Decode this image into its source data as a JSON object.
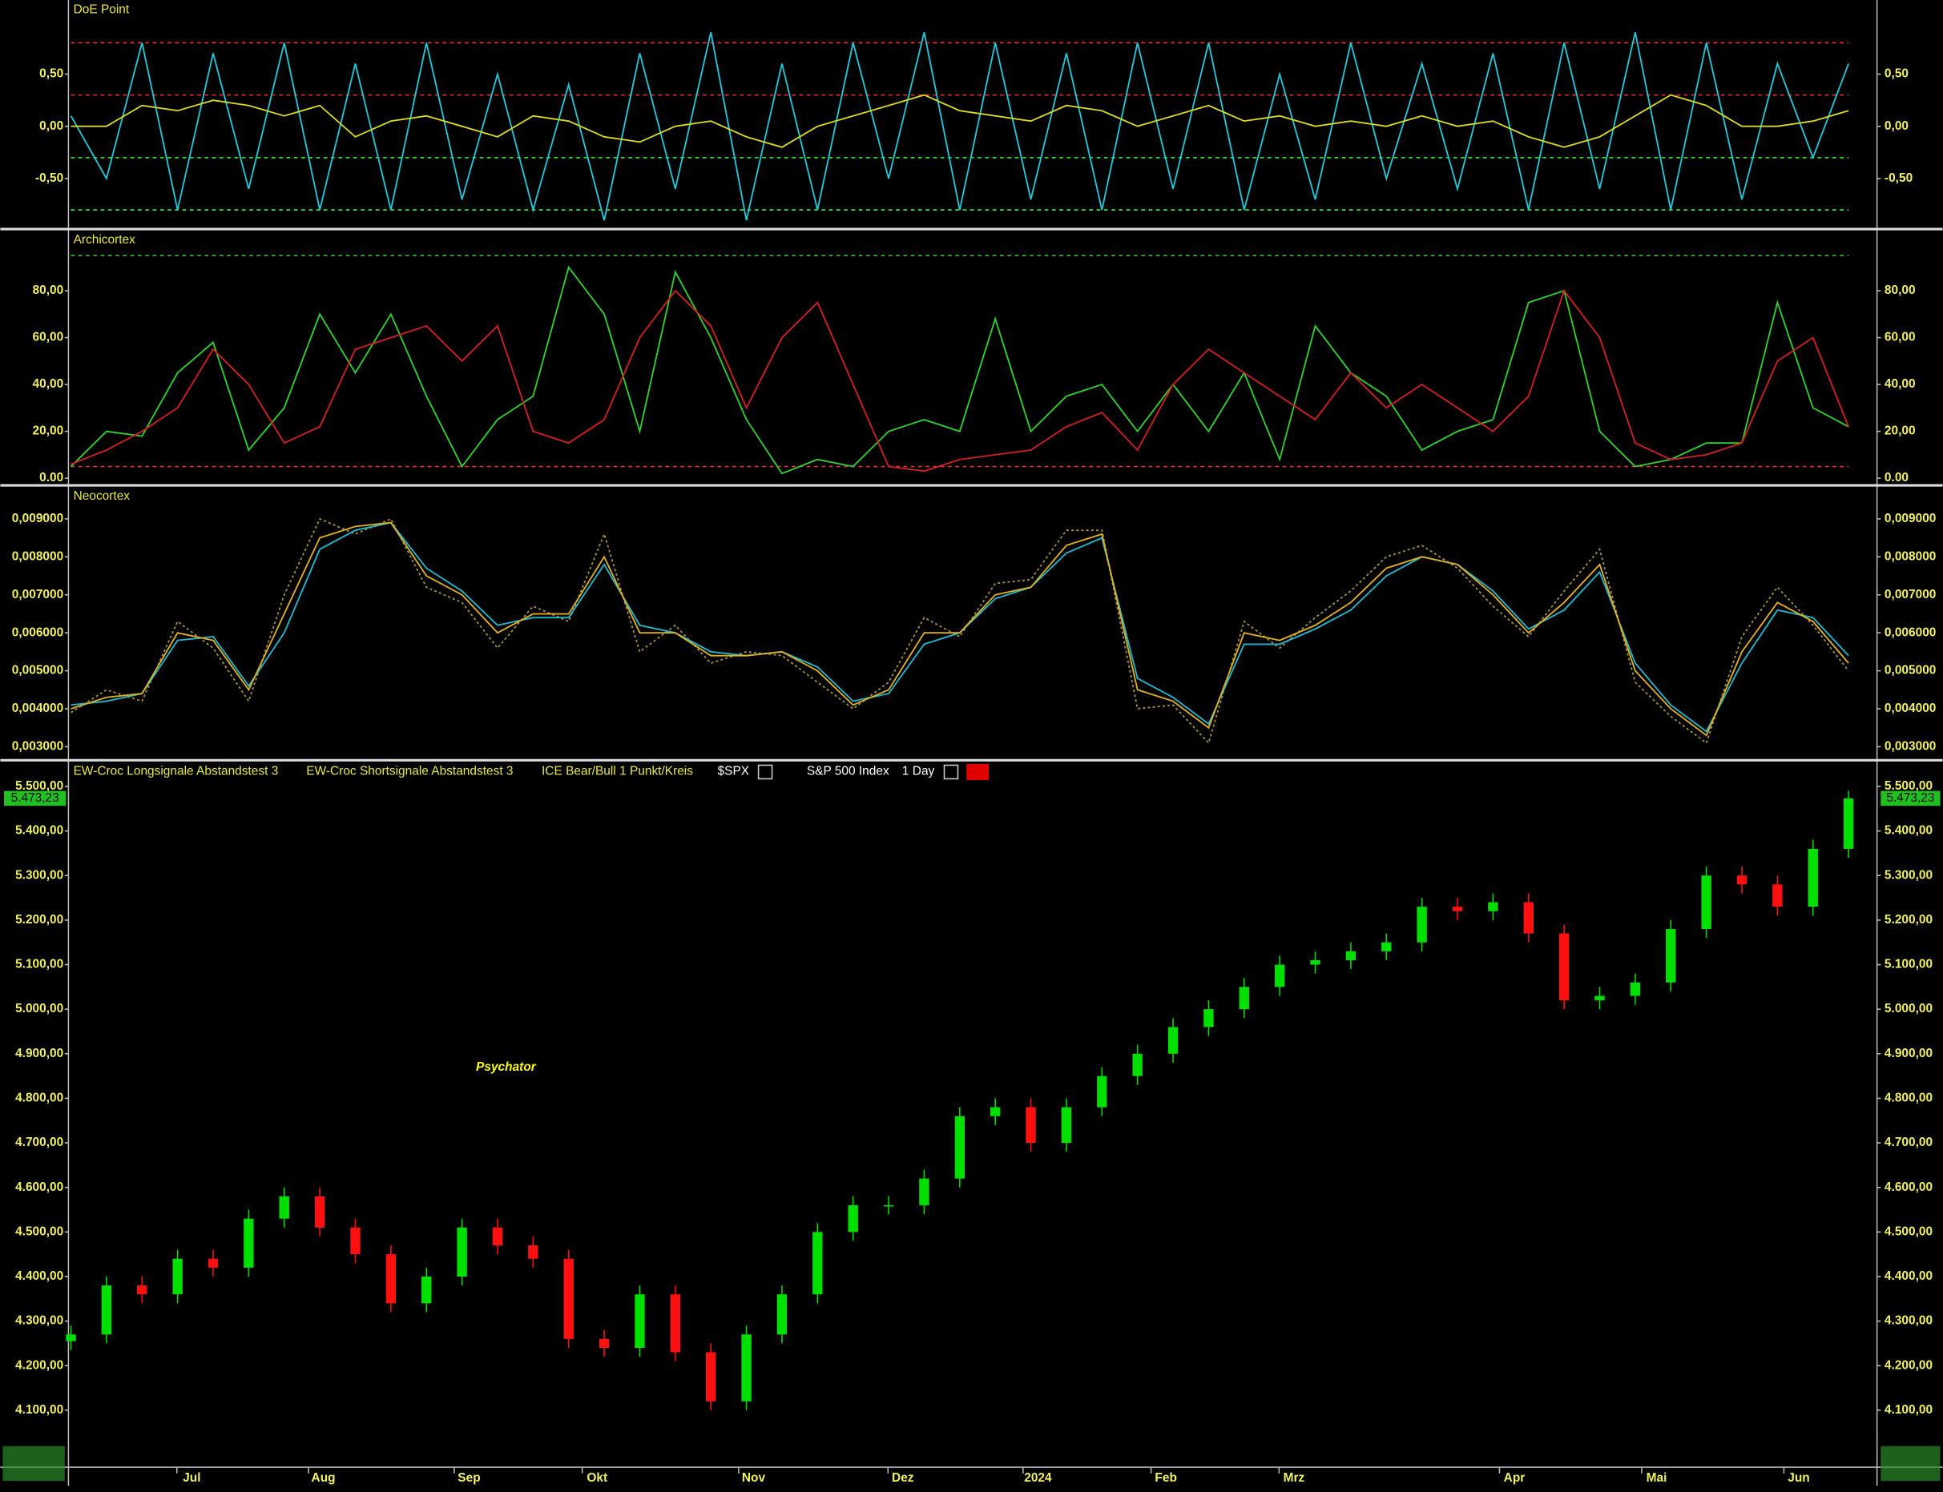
{
  "chart_data": [
    {
      "type": "line",
      "title": "DoE Point",
      "x": [
        0,
        5,
        10,
        15,
        20,
        25,
        30,
        35,
        40,
        45,
        50,
        55,
        60,
        65,
        70,
        75,
        80,
        85,
        90,
        95,
        100,
        105,
        110,
        115,
        120,
        125,
        130,
        135,
        140,
        145,
        150,
        155,
        160,
        165,
        170,
        175,
        180,
        185,
        190,
        195,
        200,
        205,
        210,
        215,
        220,
        225,
        230,
        235,
        240,
        245,
        250
      ],
      "xlim": [
        0,
        250
      ],
      "ylim": [
        -0.96,
        1.21
      ],
      "yticks": [
        {
          "value": 0.5,
          "label": "0,50"
        },
        {
          "value": 0,
          "label": "0,00"
        },
        {
          "value": -0.5,
          "label": "-0,50"
        }
      ],
      "levels": [
        {
          "value": 0.8,
          "color": "#ff3030"
        },
        {
          "value": 0.3,
          "color": "#ff3030"
        },
        {
          "value": -0.3,
          "color": "#30ff30"
        },
        {
          "value": -0.8,
          "color": "#30ff30"
        }
      ],
      "series": [
        {
          "color": "#20c8d8",
          "values": [
            0.1,
            -0.5,
            0.8,
            -0.8,
            0.7,
            -0.6,
            0.8,
            -0.8,
            0.6,
            -0.8,
            0.8,
            -0.7,
            0.5,
            -0.8,
            0.4,
            -0.9,
            0.7,
            -0.6,
            0.9,
            -0.9,
            0.6,
            -0.8,
            0.8,
            -0.5,
            0.9,
            -0.8,
            0.8,
            -0.7,
            0.7,
            -0.8,
            0.8,
            -0.6,
            0.8,
            -0.8,
            0.5,
            -0.7,
            0.8,
            -0.5,
            0.6,
            -0.6,
            0.7,
            -0.8,
            0.8,
            -0.6,
            0.9,
            -0.8,
            0.8,
            -0.7,
            0.6,
            -0.3,
            0.6
          ]
        },
        {
          "color": "#d8d820",
          "values": [
            0.0,
            0.0,
            0.2,
            0.15,
            0.25,
            0.2,
            0.1,
            0.2,
            -0.1,
            0.05,
            0.1,
            0.0,
            -0.1,
            0.1,
            0.05,
            -0.1,
            -0.15,
            0.0,
            0.05,
            -0.1,
            -0.2,
            0.0,
            0.1,
            0.2,
            0.3,
            0.15,
            0.1,
            0.05,
            0.2,
            0.15,
            0.0,
            0.1,
            0.2,
            0.05,
            0.1,
            0.0,
            0.05,
            0.0,
            0.1,
            0.0,
            0.05,
            -0.1,
            -0.2,
            -0.1,
            0.1,
            0.3,
            0.2,
            0.0,
            0.0,
            0.05,
            0.15
          ]
        }
      ]
    },
    {
      "type": "line",
      "title": "Archicortex",
      "x": [
        0,
        5,
        10,
        15,
        20,
        25,
        30,
        35,
        40,
        45,
        50,
        55,
        60,
        65,
        70,
        75,
        80,
        85,
        90,
        95,
        100,
        105,
        110,
        115,
        120,
        125,
        130,
        135,
        140,
        145,
        150,
        155,
        160,
        165,
        170,
        175,
        180,
        185,
        190,
        195,
        200,
        205,
        210,
        215,
        220,
        225,
        230,
        235,
        240,
        245,
        250
      ],
      "xlim": [
        0,
        250
      ],
      "ylim": [
        -2,
        105.8
      ],
      "yticks": [
        {
          "value": 80,
          "label": "80,00"
        },
        {
          "value": 60,
          "label": "60,00"
        },
        {
          "value": 40,
          "label": "40,00"
        },
        {
          "value": 20,
          "label": "20,00"
        },
        {
          "value": 0,
          "label": "0.00"
        }
      ],
      "levels": [
        {
          "value": 95,
          "color": "#30c030"
        },
        {
          "value": 5,
          "color": "#ff3030"
        }
      ],
      "series": [
        {
          "color": "#30d030",
          "values": [
            5,
            20,
            18,
            45,
            58,
            12,
            30,
            70,
            45,
            70,
            35,
            5,
            25,
            35,
            90,
            70,
            20,
            88,
            60,
            25,
            2,
            8,
            5,
            20,
            25,
            20,
            68,
            20,
            35,
            40,
            20,
            40,
            20,
            45,
            8,
            65,
            45,
            35,
            12,
            20,
            25,
            75,
            80,
            20,
            5,
            8,
            15,
            15,
            75,
            30,
            22
          ]
        },
        {
          "color": "#d02020",
          "values": [
            6,
            12,
            20,
            30,
            55,
            40,
            15,
            22,
            55,
            60,
            65,
            50,
            65,
            20,
            15,
            25,
            60,
            80,
            65,
            30,
            60,
            75,
            40,
            5,
            3,
            8,
            10,
            12,
            22,
            28,
            12,
            40,
            55,
            45,
            35,
            25,
            45,
            30,
            40,
            30,
            20,
            35,
            80,
            60,
            15,
            8,
            10,
            15,
            50,
            60,
            22
          ]
        }
      ]
    },
    {
      "type": "line",
      "title": "Neocortex",
      "x": [
        0,
        5,
        10,
        15,
        20,
        25,
        30,
        35,
        40,
        45,
        50,
        55,
        60,
        65,
        70,
        75,
        80,
        85,
        90,
        95,
        100,
        105,
        110,
        115,
        120,
        125,
        130,
        135,
        140,
        145,
        150,
        155,
        160,
        165,
        170,
        175,
        180,
        185,
        190,
        195,
        200,
        205,
        210,
        215,
        220,
        225,
        230,
        235,
        240,
        245,
        250
      ],
      "xlim": [
        0,
        250
      ],
      "ylim": [
        0.00271,
        0.00985
      ],
      "yticks": [
        {
          "value": 0.009,
          "label": "0,009000"
        },
        {
          "value": 0.008,
          "label": "0,008000"
        },
        {
          "value": 0.007,
          "label": "0,007000"
        },
        {
          "value": 0.006,
          "label": "0,006000"
        },
        {
          "value": 0.005,
          "label": "0,005000"
        },
        {
          "value": 0.004,
          "label": "0,004000"
        },
        {
          "value": 0.003,
          "label": "0,003000"
        }
      ],
      "levels": [],
      "series": [
        {
          "color": "#a09040",
          "dash": true,
          "values": [
            0.0039,
            0.0045,
            0.0042,
            0.0063,
            0.0056,
            0.0042,
            0.007,
            0.009,
            0.0086,
            0.009,
            0.0072,
            0.0068,
            0.0056,
            0.0067,
            0.0063,
            0.0086,
            0.0055,
            0.0062,
            0.0052,
            0.0055,
            0.0054,
            0.0047,
            0.004,
            0.0047,
            0.0064,
            0.0059,
            0.0073,
            0.0074,
            0.0087,
            0.0087,
            0.004,
            0.0041,
            0.0031,
            0.0063,
            0.0056,
            0.0064,
            0.0071,
            0.008,
            0.0083,
            0.0077,
            0.0067,
            0.0059,
            0.0071,
            0.0082,
            0.0047,
            0.0038,
            0.0031,
            0.0059,
            0.0072,
            0.0062,
            0.005
          ]
        },
        {
          "color": "#20b8d0",
          "values": [
            0.0041,
            0.0042,
            0.0044,
            0.0058,
            0.0059,
            0.0046,
            0.006,
            0.0082,
            0.0087,
            0.0089,
            0.0077,
            0.0071,
            0.0062,
            0.0064,
            0.0064,
            0.0078,
            0.0062,
            0.006,
            0.0055,
            0.0054,
            0.0055,
            0.0051,
            0.0042,
            0.0044,
            0.0057,
            0.006,
            0.0069,
            0.0072,
            0.0081,
            0.0085,
            0.0048,
            0.0043,
            0.0036,
            0.0057,
            0.0057,
            0.0061,
            0.0066,
            0.0075,
            0.008,
            0.0078,
            0.0071,
            0.0061,
            0.0066,
            0.0076,
            0.0052,
            0.0041,
            0.0034,
            0.0052,
            0.0066,
            0.0064,
            0.0054
          ]
        },
        {
          "color": "#e0b020",
          "values": [
            0.004,
            0.0043,
            0.0044,
            0.006,
            0.0058,
            0.0045,
            0.0065,
            0.0085,
            0.0088,
            0.0089,
            0.0075,
            0.007,
            0.006,
            0.0065,
            0.0065,
            0.008,
            0.006,
            0.006,
            0.0054,
            0.0054,
            0.0055,
            0.005,
            0.0041,
            0.0045,
            0.006,
            0.006,
            0.007,
            0.0072,
            0.0083,
            0.0086,
            0.0045,
            0.0042,
            0.0035,
            0.006,
            0.0058,
            0.0062,
            0.0068,
            0.0077,
            0.008,
            0.0078,
            0.007,
            0.006,
            0.0068,
            0.0078,
            0.005,
            0.004,
            0.0033,
            0.0055,
            0.0068,
            0.0063,
            0.0052
          ]
        }
      ]
    },
    {
      "type": "candlestick",
      "legend": [
        "EW-Croc Longsignale Abstandstest 3",
        "EW-Croc Shortsignale Abstandstest 3",
        "ICE Bear/Bull 1 Punkt/Kreis",
        "$SPX",
        "S&P 500 Index",
        "1 Day"
      ],
      "annotation": "Psychator",
      "last": {
        "value": 5473.23,
        "label": "5.473,23"
      },
      "x": [
        0,
        5,
        10,
        15,
        20,
        25,
        30,
        35,
        40,
        45,
        50,
        55,
        60,
        65,
        70,
        75,
        80,
        85,
        90,
        95,
        100,
        105,
        110,
        115,
        120,
        125,
        130,
        135,
        140,
        145,
        150,
        155,
        160,
        165,
        170,
        175,
        180,
        185,
        190,
        195,
        200,
        205,
        210,
        215,
        220,
        225,
        230,
        235,
        240,
        245,
        250
      ],
      "xlim": [
        0,
        250
      ],
      "ylim": [
        3972,
        5556
      ],
      "xticks": [
        {
          "value": 17,
          "label": "Jul"
        },
        {
          "value": 35.5,
          "label": "Aug"
        },
        {
          "value": 56,
          "label": "Sep"
        },
        {
          "value": 74,
          "label": "Okt"
        },
        {
          "value": 96,
          "label": "Nov"
        },
        {
          "value": 117,
          "label": "Dez"
        },
        {
          "value": 136,
          "label": "2024"
        },
        {
          "value": 154,
          "label": "Feb"
        },
        {
          "value": 172,
          "label": "Mrz"
        },
        {
          "value": 203,
          "label": "Apr"
        },
        {
          "value": 223,
          "label": "Mai"
        },
        {
          "value": 243,
          "label": "Jun"
        }
      ],
      "yticks": [
        {
          "value": 5500,
          "label": "5.500,00"
        },
        {
          "value": 5400,
          "label": "5.400,00"
        },
        {
          "value": 5300,
          "label": "5.300,00"
        },
        {
          "value": 5200,
          "label": "5.200,00"
        },
        {
          "value": 5100,
          "label": "5.100,00"
        },
        {
          "value": 5000,
          "label": "5.000,00"
        },
        {
          "value": 4900,
          "label": "4.900,00"
        },
        {
          "value": 4800,
          "label": "4.800,00"
        },
        {
          "value": 4700,
          "label": "4.700,00"
        },
        {
          "value": 4600,
          "label": "4.600,00"
        },
        {
          "value": 4500,
          "label": "4.500,00"
        },
        {
          "value": 4400,
          "label": "4.400,00"
        },
        {
          "value": 4300,
          "label": "4.300,00"
        },
        {
          "value": 4200,
          "label": "4.200,00"
        },
        {
          "value": 4100,
          "label": "4.100,00"
        }
      ],
      "up_color": "#00e000",
      "down_color": "#ff1010",
      "open": [
        4255,
        4270,
        4380,
        4360,
        4440,
        4420,
        4530,
        4580,
        4510,
        4450,
        4340,
        4400,
        4510,
        4470,
        4440,
        4260,
        4240,
        4360,
        4230,
        4120,
        4270,
        4360,
        4500,
        4560,
        4560,
        4620,
        4760,
        4780,
        4700,
        4780,
        4850,
        4900,
        4960,
        5000,
        5050,
        5100,
        5110,
        5130,
        5150,
        5230,
        5220,
        5240,
        5170,
        5020,
        5030,
        5060,
        5180,
        5300,
        5280,
        5230,
        5360
      ],
      "high": [
        4290,
        4400,
        4400,
        4460,
        4460,
        4550,
        4600,
        4600,
        4530,
        4470,
        4420,
        4530,
        4530,
        4490,
        4460,
        4280,
        4380,
        4380,
        4250,
        4290,
        4380,
        4520,
        4580,
        4580,
        4640,
        4780,
        4800,
        4800,
        4800,
        4870,
        4920,
        4980,
        5020,
        5070,
        5120,
        5130,
        5150,
        5170,
        5250,
        5250,
        5260,
        5260,
        5190,
        5050,
        5080,
        5200,
        5320,
        5320,
        5300,
        5380,
        5490
      ],
      "low": [
        4235,
        4250,
        4340,
        4340,
        4400,
        4400,
        4510,
        4490,
        4430,
        4320,
        4320,
        4380,
        4450,
        4420,
        4240,
        4220,
        4220,
        4210,
        4100,
        4100,
        4250,
        4340,
        4480,
        4540,
        4540,
        4600,
        4740,
        4680,
        4680,
        4760,
        4830,
        4880,
        4940,
        4980,
        5030,
        5080,
        5090,
        5110,
        5130,
        5200,
        5200,
        5150,
        5000,
        5000,
        5010,
        5040,
        5160,
        5260,
        5210,
        5210,
        5340
      ],
      "close": [
        4270,
        4380,
        4360,
        4440,
        4420,
        4530,
        4580,
        4510,
        4450,
        4340,
        4400,
        4510,
        4470,
        4440,
        4260,
        4240,
        4360,
        4230,
        4120,
        4270,
        4360,
        4500,
        4560,
        4560,
        4620,
        4760,
        4780,
        4700,
        4780,
        4850,
        4900,
        4960,
        5000,
        5050,
        5100,
        5110,
        5130,
        5150,
        5230,
        5220,
        5240,
        5170,
        5020,
        5030,
        5060,
        5180,
        5300,
        5280,
        5230,
        5360,
        5473.23
      ]
    }
  ]
}
